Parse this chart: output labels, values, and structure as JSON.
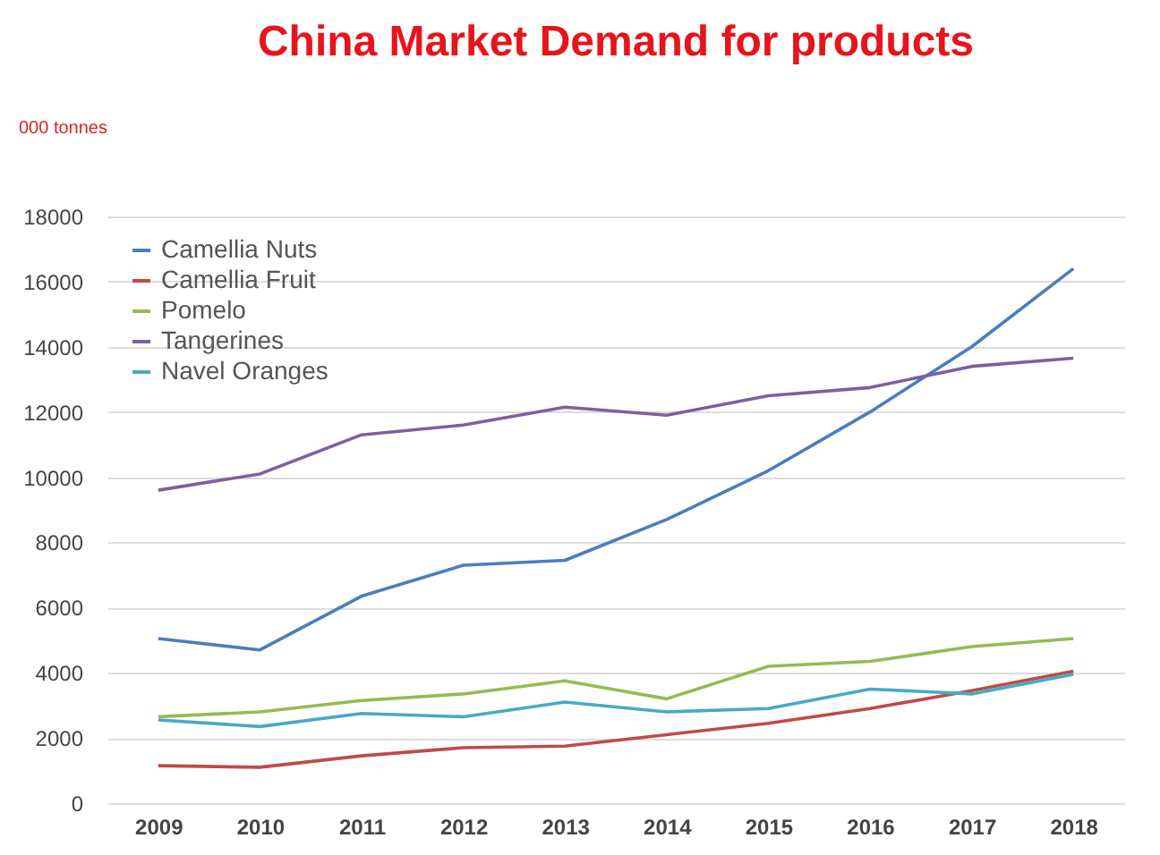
{
  "chart_data": {
    "type": "line",
    "title": "China Market  Demand  for products",
    "ylabel": "000 tonnes",
    "categories": [
      "2009",
      "2010",
      "2011",
      "2012",
      "2013",
      "2014",
      "2015",
      "2016",
      "2017",
      "2018"
    ],
    "series": [
      {
        "name": "Camellia Nuts",
        "color": "#4a7ebb",
        "values": [
          5050,
          4700,
          6350,
          7300,
          7450,
          8700,
          10200,
          12000,
          14000,
          16400
        ]
      },
      {
        "name": "Camellia Fruit",
        "color": "#be4b48",
        "values": [
          1150,
          1100,
          1450,
          1700,
          1750,
          2100,
          2450,
          2900,
          3450,
          4050
        ]
      },
      {
        "name": "Pomelo",
        "color": "#98b954",
        "values": [
          2650,
          2800,
          3150,
          3350,
          3750,
          3200,
          4200,
          4350,
          4800,
          5050
        ]
      },
      {
        "name": "Tangerines",
        "color": "#7d60a0",
        "values": [
          9600,
          10100,
          11300,
          11600,
          12150,
          11900,
          12500,
          12750,
          13400,
          13650
        ]
      },
      {
        "name": "Navel Oranges",
        "color": "#46aac5",
        "values": [
          2550,
          2350,
          2750,
          2650,
          3100,
          2800,
          2900,
          3500,
          3350,
          3950
        ]
      }
    ],
    "ylim": [
      0,
      18000
    ],
    "yticks": [
      0,
      2000,
      4000,
      6000,
      8000,
      10000,
      12000,
      14000,
      16000,
      18000
    ],
    "grid": "y",
    "legend": "top left",
    "marker": "none",
    "line_style": "solid"
  }
}
